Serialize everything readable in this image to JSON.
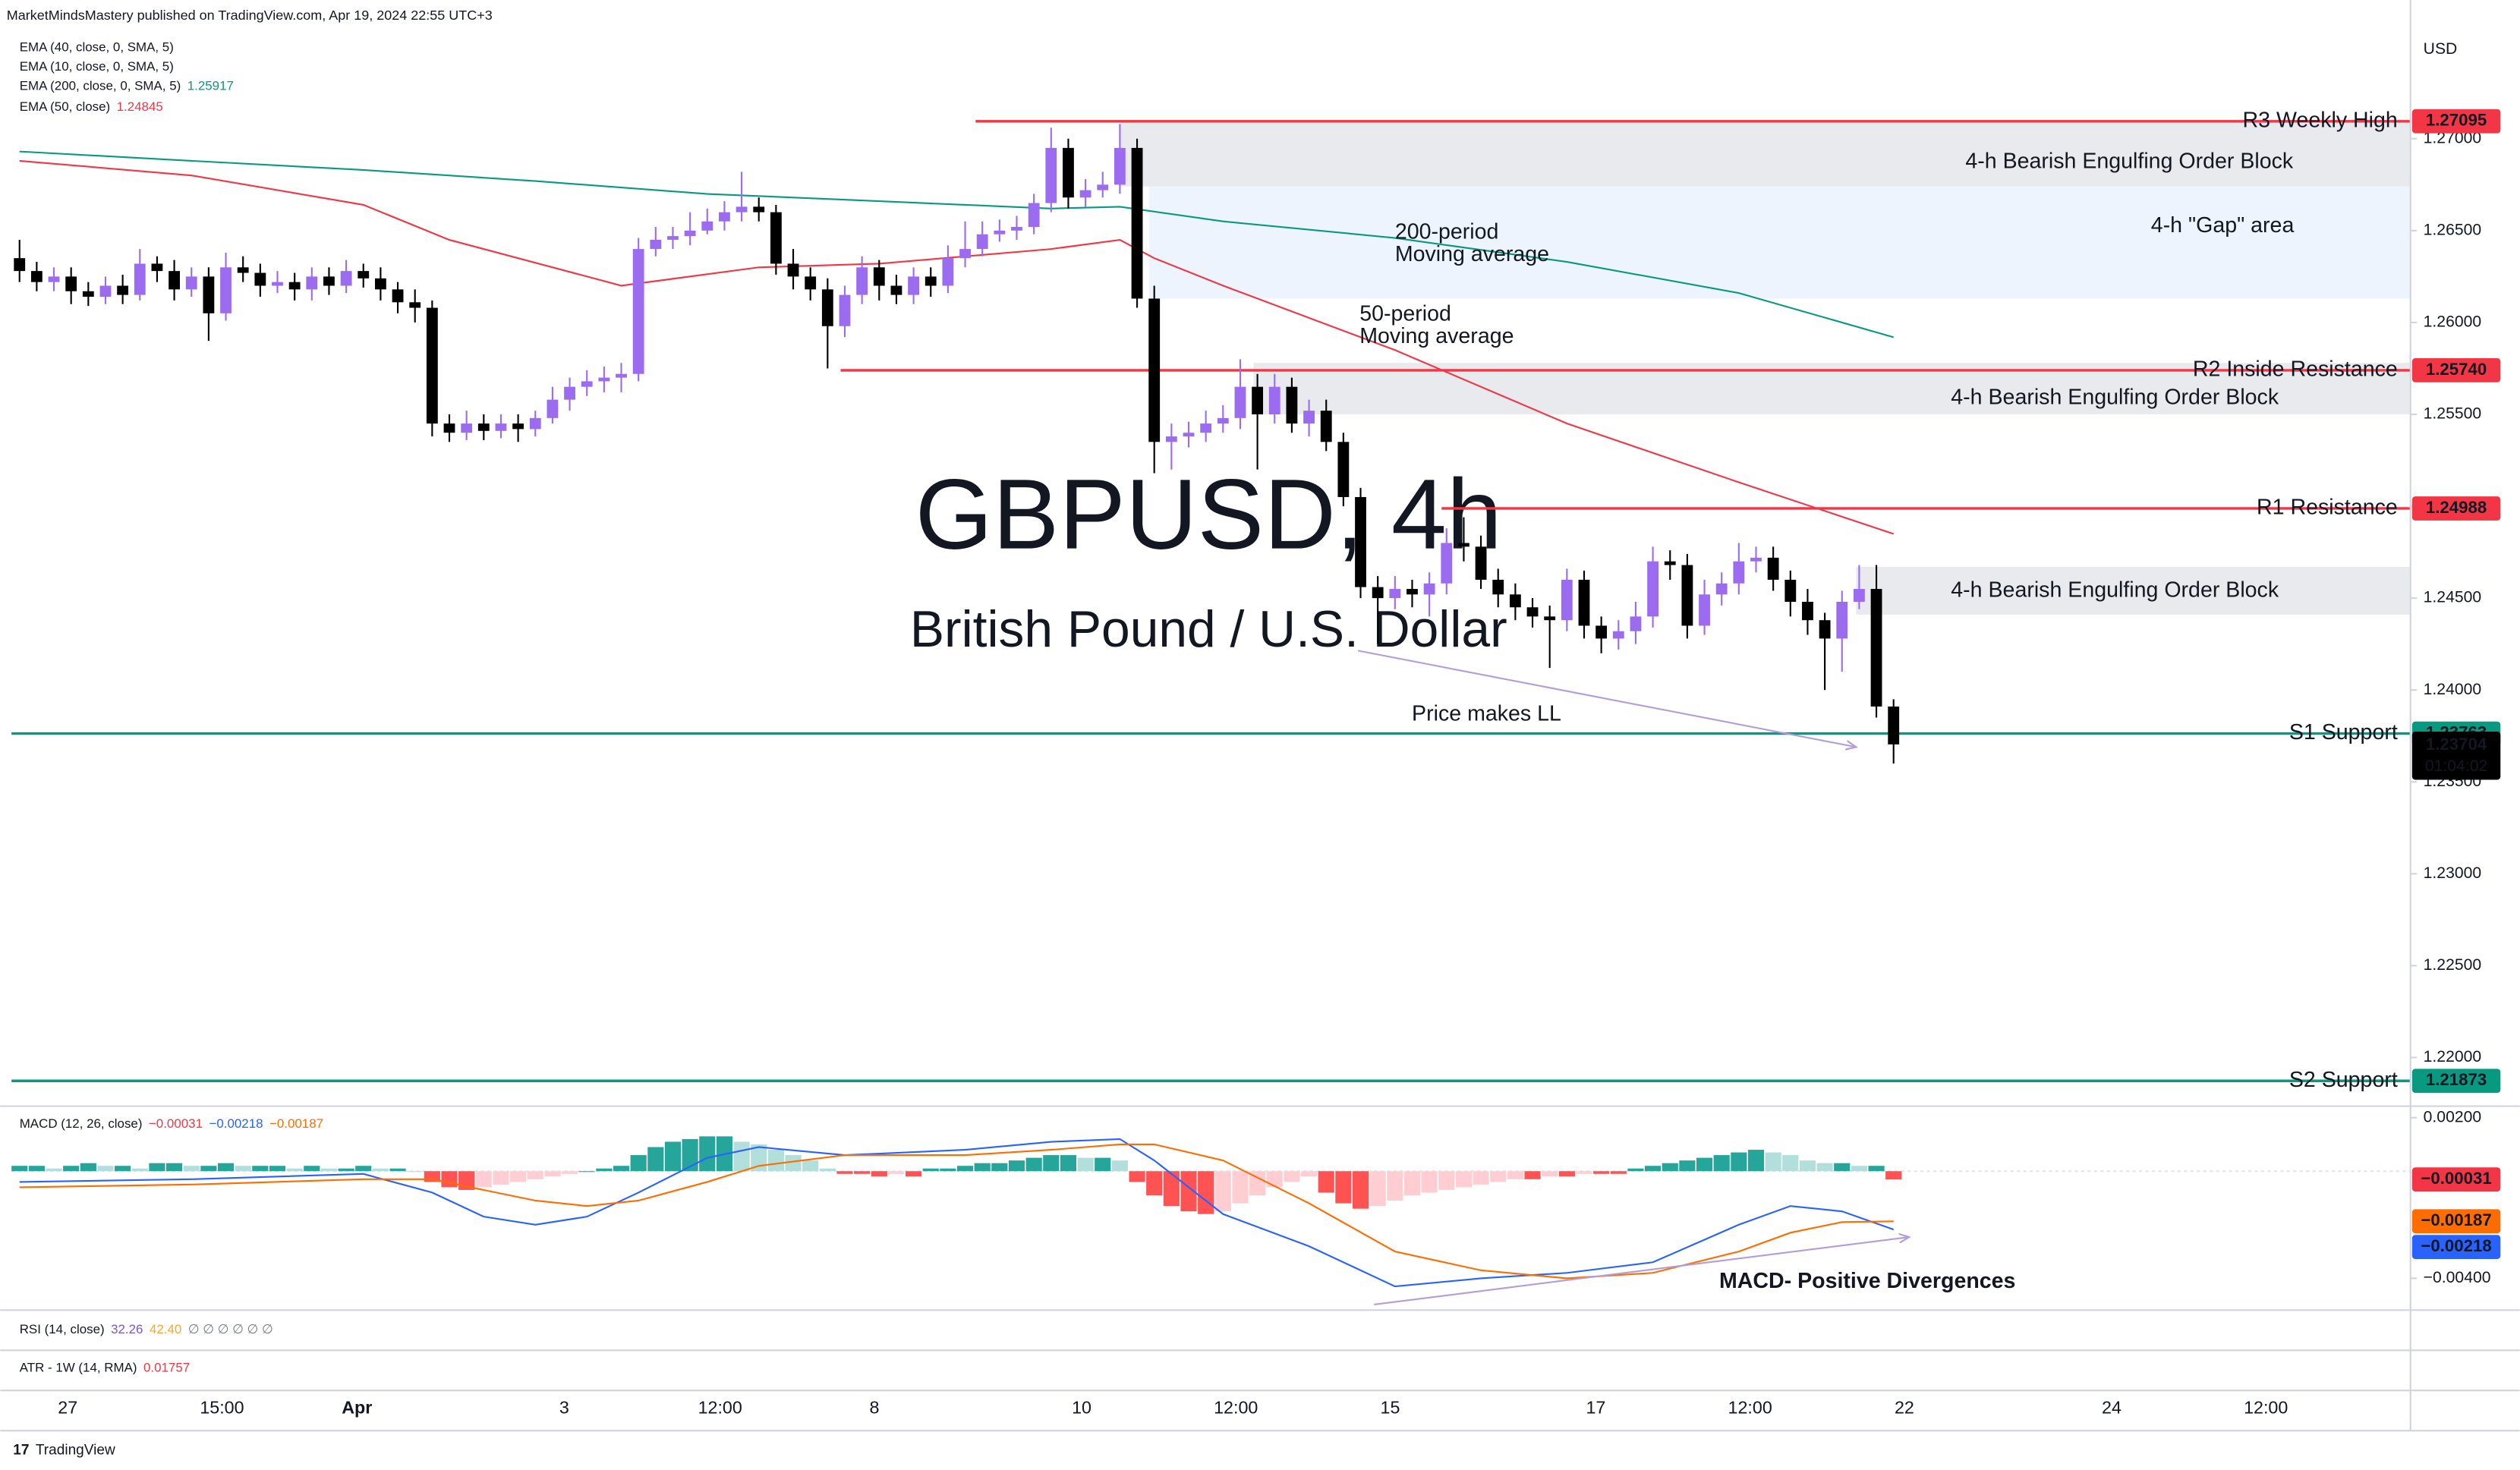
{
  "header": {
    "publisher": "MarketMindsMastery published on TradingView.com, Apr 19, 2024 22:55 UTC+3",
    "currency": "USD",
    "brand": "TradingView"
  },
  "legends": [
    {
      "text": "EMA (40, close, 0, SMA, 5)"
    },
    {
      "text": "EMA (10, close, 0, SMA, 5)"
    },
    {
      "text": "EMA (200, close, 0, SMA, 5)",
      "value": "1.25917",
      "color": "#089981"
    },
    {
      "text": "EMA (50, close)",
      "value": "1.24845",
      "color": "#f23645"
    }
  ],
  "rsi_legend": {
    "text": "RSI (14, close)",
    "values": [
      "32.26",
      "42.40",
      "∅ ∅ ∅ ∅ ∅ ∅"
    ],
    "colors": [
      "#7e57c2",
      "#f9a825",
      "#787b86"
    ]
  },
  "atr_legend": {
    "text": "ATR - 1W (14, RMA)",
    "value": "0.01757",
    "color": "#f23645"
  },
  "chart_data": [
    {
      "type": "candlestick",
      "title": "GBPUSD, 4h",
      "subtitle": "British Pound / U.S. Dollar",
      "x_labels": [
        "27",
        "15:00",
        "Apr",
        "3",
        "12:00",
        "8",
        "10",
        "12:00",
        "15",
        "17",
        "12:00",
        "22",
        "24",
        "12:00"
      ],
      "ylim": [
        1.2174,
        1.2758
      ],
      "yticks": [
        {
          "value": 1.22,
          "label": "1.22000"
        },
        {
          "value": 1.225,
          "label": "1.22500"
        },
        {
          "value": 1.23,
          "label": "1.23000"
        },
        {
          "value": 1.235,
          "label": "1.23500"
        },
        {
          "value": 1.24,
          "label": "1.24000"
        },
        {
          "value": 1.245,
          "label": "1.24500"
        },
        {
          "value": 1.25,
          "label": "1.25000"
        },
        {
          "value": 1.255,
          "label": "1.25500"
        },
        {
          "value": 1.26,
          "label": "1.26000"
        },
        {
          "value": 1.265,
          "label": "1.26500"
        },
        {
          "value": 1.27,
          "label": "1.27000"
        }
      ],
      "up_color": "#9c6cf0",
      "down_color": "#000000",
      "open": [
        1.2635,
        1.2628,
        1.2622,
        1.2625,
        1.2617,
        1.2614,
        1.262,
        1.2615,
        1.2632,
        1.2628,
        1.2618,
        1.2625,
        1.2605,
        1.263,
        1.2627,
        1.262,
        1.2622,
        1.2618,
        1.2625,
        1.262,
        1.2628,
        1.2624,
        1.2618,
        1.2611,
        1.2608,
        1.2545,
        1.254,
        1.2545,
        1.2541,
        1.2545,
        1.2542,
        1.2548,
        1.2558,
        1.2565,
        1.2568,
        1.257,
        1.2572,
        1.264,
        1.2645,
        1.2647,
        1.265,
        1.2655,
        1.266,
        1.2663,
        1.266,
        1.2632,
        1.2625,
        1.2618,
        1.2598,
        1.2615,
        1.263,
        1.262,
        1.2615,
        1.2625,
        1.262,
        1.2635,
        1.264,
        1.2648,
        1.265,
        1.2652,
        1.2665,
        1.2695,
        1.2668,
        1.2672,
        1.2675,
        1.2695,
        1.2613,
        1.2535,
        1.2538,
        1.254,
        1.2545,
        1.2548,
        1.2565,
        1.255,
        1.2565,
        1.2545,
        1.2552,
        1.2535,
        1.2505,
        1.2456,
        1.245,
        1.2455,
        1.2452,
        1.2458,
        1.248,
        1.2478,
        1.246,
        1.2452,
        1.2445,
        1.244,
        1.2438,
        1.246,
        1.2435,
        1.2428,
        1.2432,
        1.244,
        1.247,
        1.2468,
        1.2435,
        1.2452,
        1.2458,
        1.247,
        1.2472,
        1.246,
        1.2448,
        1.2438,
        1.2428,
        1.2448,
        1.2455,
        1.2391
      ],
      "high": [
        1.2645,
        1.2633,
        1.263,
        1.263,
        1.2622,
        1.2625,
        1.2626,
        1.264,
        1.2636,
        1.2634,
        1.263,
        1.263,
        1.2638,
        1.2636,
        1.2632,
        1.2628,
        1.2627,
        1.263,
        1.263,
        1.2634,
        1.2632,
        1.263,
        1.2622,
        1.2618,
        1.2612,
        1.255,
        1.2552,
        1.255,
        1.255,
        1.255,
        1.2552,
        1.2565,
        1.257,
        1.2574,
        1.2576,
        1.2578,
        1.2646,
        1.2652,
        1.2652,
        1.266,
        1.2662,
        1.2666,
        1.2682,
        1.2668,
        1.2664,
        1.264,
        1.263,
        1.2624,
        1.262,
        1.2636,
        1.2634,
        1.2626,
        1.263,
        1.263,
        1.2642,
        1.2655,
        1.2655,
        1.2656,
        1.2658,
        1.267,
        1.2706,
        1.27,
        1.2678,
        1.2682,
        1.2708,
        1.27,
        1.262,
        1.2545,
        1.2546,
        1.2552,
        1.2555,
        1.258,
        1.2572,
        1.2572,
        1.257,
        1.2558,
        1.2558,
        1.254,
        1.251,
        1.2462,
        1.2462,
        1.246,
        1.2464,
        1.2488,
        1.2494,
        1.2484,
        1.2466,
        1.2458,
        1.245,
        1.2446,
        1.2466,
        1.2465,
        1.244,
        1.2438,
        1.2448,
        1.2478,
        1.2476,
        1.2474,
        1.246,
        1.2464,
        1.248,
        1.2478,
        1.2478,
        1.2465,
        1.2455,
        1.2442,
        1.2454,
        1.2468,
        1.2468,
        1.2395
      ],
      "low": [
        1.2622,
        1.2617,
        1.2617,
        1.261,
        1.2609,
        1.261,
        1.261,
        1.2612,
        1.2622,
        1.2612,
        1.2614,
        1.259,
        1.2601,
        1.2622,
        1.2614,
        1.2616,
        1.2612,
        1.2612,
        1.2615,
        1.2616,
        1.2619,
        1.2612,
        1.2605,
        1.26,
        1.2538,
        1.2535,
        1.2536,
        1.2536,
        1.2537,
        1.2535,
        1.2538,
        1.2545,
        1.2552,
        1.256,
        1.2562,
        1.2562,
        1.2568,
        1.2636,
        1.264,
        1.2642,
        1.2648,
        1.265,
        1.2655,
        1.2655,
        1.2626,
        1.2618,
        1.2612,
        1.2575,
        1.2592,
        1.261,
        1.2612,
        1.261,
        1.261,
        1.2614,
        1.2616,
        1.263,
        1.2636,
        1.2644,
        1.2645,
        1.2648,
        1.266,
        1.2662,
        1.2663,
        1.2668,
        1.267,
        1.2608,
        1.2518,
        1.252,
        1.2532,
        1.2535,
        1.254,
        1.2542,
        1.252,
        1.2545,
        1.254,
        1.2538,
        1.253,
        1.25,
        1.245,
        1.2425,
        1.2444,
        1.2445,
        1.244,
        1.2452,
        1.247,
        1.2455,
        1.2445,
        1.2438,
        1.2434,
        1.2412,
        1.2432,
        1.2428,
        1.242,
        1.2422,
        1.2425,
        1.2434,
        1.246,
        1.2428,
        1.243,
        1.2446,
        1.2452,
        1.2464,
        1.2454,
        1.244,
        1.243,
        1.24,
        1.241,
        1.2444,
        1.2385,
        1.236
      ],
      "close": [
        1.2628,
        1.2622,
        1.2625,
        1.2617,
        1.2614,
        1.262,
        1.2615,
        1.2632,
        1.2628,
        1.2618,
        1.2625,
        1.2605,
        1.263,
        1.2627,
        1.262,
        1.2622,
        1.2618,
        1.2625,
        1.262,
        1.2628,
        1.2624,
        1.2618,
        1.2611,
        1.2608,
        1.2545,
        1.254,
        1.2545,
        1.2541,
        1.2545,
        1.2542,
        1.2548,
        1.2558,
        1.2565,
        1.2568,
        1.257,
        1.2572,
        1.264,
        1.2645,
        1.2647,
        1.265,
        1.2655,
        1.266,
        1.2663,
        1.266,
        1.2632,
        1.2625,
        1.2618,
        1.2598,
        1.2615,
        1.263,
        1.262,
        1.2615,
        1.2625,
        1.262,
        1.2635,
        1.264,
        1.2648,
        1.265,
        1.2652,
        1.2665,
        1.2695,
        1.2668,
        1.2672,
        1.2675,
        1.2695,
        1.2613,
        1.2535,
        1.2538,
        1.254,
        1.2545,
        1.2548,
        1.2565,
        1.255,
        1.2565,
        1.2545,
        1.2552,
        1.2535,
        1.2505,
        1.2456,
        1.245,
        1.2455,
        1.2452,
        1.2458,
        1.248,
        1.2478,
        1.246,
        1.2452,
        1.2445,
        1.244,
        1.2438,
        1.246,
        1.2435,
        1.2428,
        1.2432,
        1.244,
        1.247,
        1.2468,
        1.2435,
        1.2452,
        1.2458,
        1.247,
        1.2472,
        1.246,
        1.2448,
        1.2438,
        1.2428,
        1.2448,
        1.2455,
        1.2391,
        1.23704
      ],
      "series": [
        {
          "label_lines": [
            "200-period",
            "Moving average"
          ],
          "color": "#089981",
          "x": [
            0,
            10,
            20,
            30,
            40,
            50,
            60,
            64,
            70,
            80,
            90,
            100,
            109
          ],
          "values": [
            1.2693,
            1.2688,
            1.2683,
            1.2677,
            1.267,
            1.2666,
            1.2662,
            1.2663,
            1.2655,
            1.2646,
            1.2633,
            1.2616,
            1.2592
          ]
        },
        {
          "label_lines": [
            "50-period",
            "Moving average"
          ],
          "color": "#f23645",
          "x": [
            0,
            10,
            20,
            25,
            35,
            43,
            50,
            60,
            64,
            66,
            70,
            80,
            90,
            100,
            109
          ],
          "values": [
            1.2688,
            1.268,
            1.2664,
            1.2645,
            1.262,
            1.263,
            1.2632,
            1.264,
            1.2645,
            1.2635,
            1.262,
            1.2585,
            1.2545,
            1.2513,
            1.2485
          ]
        }
      ],
      "zones": [
        {
          "label": "4-h Bearish Engulfing Order Block",
          "top": 1.2709,
          "bottom": 1.2674,
          "color": "#e9eaed"
        },
        {
          "label": "4-h \"Gap\" area",
          "top": 1.2674,
          "bottom": 1.2613,
          "color": "#eef4fd"
        },
        {
          "label": "4-h Bearish Engulfing Order Block",
          "top": 1.2578,
          "bottom": 1.255,
          "color": "#e9eaed"
        },
        {
          "label": "4-h Bearish Engulfing Order Block",
          "top": 1.2467,
          "bottom": 1.2441,
          "color": "#e9eaed"
        }
      ],
      "levels": [
        {
          "name": "R3 Weekly High",
          "value": 1.27095,
          "value_label": "1.27095",
          "color": "#f23645"
        },
        {
          "name": "R2 Inside Resistance",
          "value": 1.2574,
          "value_label": "1.25740",
          "color": "#f23645"
        },
        {
          "name": "R1 Resistance",
          "value": 1.24988,
          "value_label": "1.24988",
          "color": "#f23645"
        },
        {
          "name": "S1 Support",
          "value": 1.23763,
          "value_label": "1.23763",
          "color": "#089981"
        },
        {
          "name": "S2 Support",
          "value": 1.21873,
          "value_label": "1.21873",
          "color": "#089981"
        }
      ],
      "last_price": {
        "value": 1.23704,
        "label": "1.23704",
        "countdown": "01:04:02"
      },
      "annotations": [
        "Price makes LL"
      ]
    },
    {
      "type": "macd",
      "title": "MACD (12, 26, close)",
      "ylim": [
        -0.00516,
        0.00234
      ],
      "yticks": [
        {
          "value": 0.002,
          "label": "0.00200"
        },
        {
          "value": -0.004,
          "label": "−0.00400"
        }
      ],
      "histogram": {
        "colors": {
          "pos_up": "#26a69a",
          "pos_down": "#b2dfdb",
          "neg_down": "#ff5252",
          "neg_up": "#ffcdd2"
        },
        "last_label": "−0.00031",
        "label_color": "#f23645",
        "values": [
          0.0002,
          0.0002,
          0.0001,
          0.0002,
          0.0003,
          0.0002,
          0.0002,
          0.0001,
          0.0003,
          0.0003,
          0.0002,
          0.0002,
          0.0003,
          0.0002,
          0.0002,
          0.0002,
          0.0001,
          0.0002,
          0.0001,
          0.0001,
          0.0002,
          0.0001,
          0.0001,
          0,
          -0.0004,
          -0.0006,
          -0.0007,
          -0.0006,
          -0.0005,
          -0.0004,
          -0.0003,
          -0.0002,
          -0.0001,
          0,
          0.0001,
          0.0002,
          0.0006,
          0.0009,
          0.0011,
          0.0012,
          0.0013,
          0.0013,
          0.0011,
          0.001,
          0.0008,
          0.0006,
          0.0004,
          0.0001,
          -0.0001,
          -0.0001,
          -0.0002,
          -0.0001,
          -0.0002,
          0.0001,
          0.0001,
          0.0002,
          0.0003,
          0.0003,
          0.0004,
          0.0005,
          0.0006,
          0.0006,
          0.0005,
          0.0005,
          0.0004,
          -0.0004,
          -0.0009,
          -0.0013,
          -0.0015,
          -0.0016,
          -0.0015,
          -0.0012,
          -0.0009,
          -0.0006,
          -0.0004,
          -0.0002,
          -0.0008,
          -0.0012,
          -0.0014,
          -0.0013,
          -0.0011,
          -0.0009,
          -0.0008,
          -0.0007,
          -0.0006,
          -0.0005,
          -0.0004,
          -0.0003,
          -0.0003,
          -0.0002,
          -0.0002,
          -0.0001,
          -0.0001,
          -0.0001,
          0.0001,
          0.0002,
          0.0003,
          0.0004,
          0.0005,
          0.0006,
          0.0007,
          0.0008,
          0.0007,
          0.0006,
          0.0004,
          0.0003,
          0.0003,
          0.0002,
          0.0002,
          -0.00031
        ]
      },
      "series": [
        {
          "color": "#2962ff",
          "last_label": "−0.00218",
          "x": [
            0,
            10,
            20,
            24,
            27,
            30,
            33,
            36,
            40,
            43,
            48,
            55,
            60,
            64,
            66,
            70,
            75,
            80,
            85,
            90,
            95,
            100,
            103,
            106,
            109
          ],
          "values": [
            -0.0004,
            -0.0003,
            -0.0001,
            -0.0008,
            -0.0017,
            -0.002,
            -0.0017,
            -0.0008,
            0.0005,
            0.0009,
            0.0006,
            0.0008,
            0.0011,
            0.0012,
            0.0004,
            -0.0016,
            -0.0028,
            -0.0043,
            -0.004,
            -0.0038,
            -0.0034,
            -0.002,
            -0.0013,
            -0.0015,
            -0.00218
          ]
        },
        {
          "color": "#ff6d00",
          "last_label": "−0.00187",
          "x": [
            0,
            10,
            20,
            24,
            27,
            30,
            33,
            36,
            40,
            43,
            48,
            55,
            60,
            64,
            66,
            70,
            75,
            80,
            85,
            90,
            95,
            100,
            103,
            106,
            109
          ],
          "values": [
            -0.0006,
            -0.0005,
            -0.0003,
            -0.0003,
            -0.0007,
            -0.0011,
            -0.0013,
            -0.0011,
            -0.0004,
            0.0002,
            0.0006,
            0.0006,
            0.0008,
            0.001,
            0.001,
            0.0004,
            -0.0012,
            -0.003,
            -0.0037,
            -0.004,
            -0.0038,
            -0.003,
            -0.0023,
            -0.0019,
            -0.00187
          ]
        }
      ],
      "annotations": [
        "MACD- Positive Divergences"
      ]
    }
  ]
}
